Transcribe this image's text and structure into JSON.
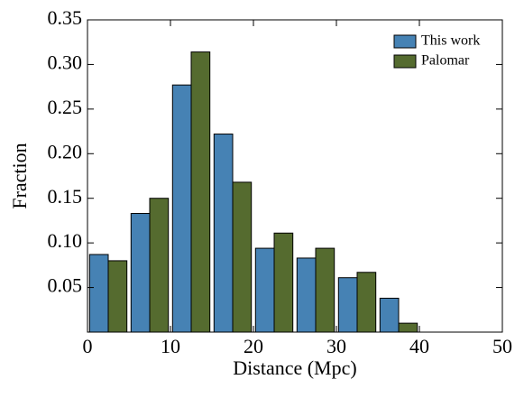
{
  "chart_data": {
    "type": "histogram",
    "xlabel": "Distance (Mpc)",
    "ylabel": "Fraction",
    "bins": [
      0,
      5,
      10,
      15,
      20,
      25,
      30,
      35,
      40,
      45,
      50
    ],
    "series": [
      {
        "name": "This work",
        "color": "#4682b4",
        "values": [
          0.087,
          0.133,
          0.277,
          0.222,
          0.094,
          0.083,
          0.061,
          0.038,
          null,
          null
        ]
      },
      {
        "name": "Palomar",
        "color": "#556b2f",
        "values": [
          0.08,
          0.15,
          0.314,
          0.168,
          0.111,
          0.094,
          0.067,
          0.01,
          null,
          null
        ]
      }
    ],
    "xlim": [
      0,
      50
    ],
    "xticks": [
      0,
      10,
      20,
      30,
      40,
      50
    ],
    "ylim": [
      0,
      0.35
    ],
    "yticks": [
      0.05,
      {
        "value": 0.1,
        "label": "0.10"
      },
      0.15,
      {
        "value": 0.2,
        "label": "0.20"
      },
      0.25,
      {
        "value": 0.3,
        "label": "0.30"
      },
      0.35
    ],
    "legend": "upper right"
  }
}
